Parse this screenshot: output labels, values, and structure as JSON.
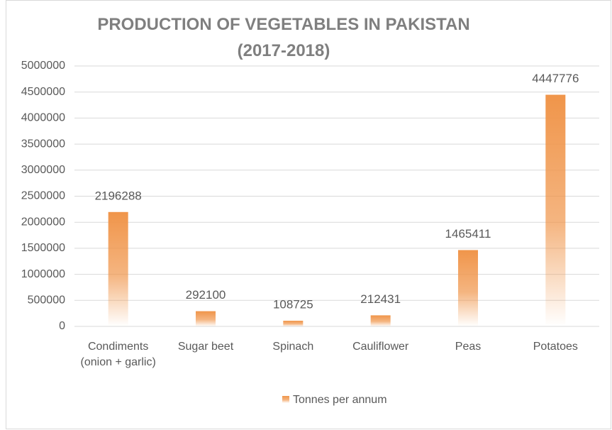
{
  "chart_data": {
    "type": "bar",
    "title": "PRODUCTION OF VEGETABLES IN PAKISTAN (2017-2018)",
    "categories": [
      "Condiments (onion + garlic)",
      "Sugar beet",
      "Spinach",
      "Cauliflower",
      "Peas",
      "Potatoes"
    ],
    "series": [
      {
        "name": "Tonnes per annum",
        "color": "#f0954a",
        "values": [
          2196288,
          292100,
          108725,
          212431,
          1465411,
          4447776
        ]
      }
    ],
    "ylim": [
      0,
      5000000
    ],
    "yticks": [
      0,
      500000,
      1000000,
      1500000,
      2000000,
      2500000,
      3000000,
      3500000,
      4000000,
      4500000,
      5000000
    ],
    "grid": true,
    "legend": "bottom"
  }
}
